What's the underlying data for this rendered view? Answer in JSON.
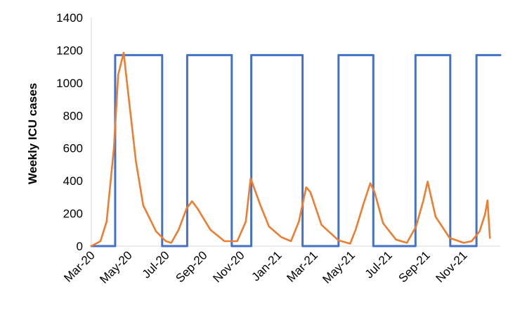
{
  "chart_data": {
    "type": "line",
    "title": "",
    "xlabel": "",
    "ylabel": "Weekly ICU cases",
    "ylim": [
      0,
      1400
    ],
    "yticks": [
      0,
      200,
      400,
      600,
      800,
      1000,
      1200,
      1400
    ],
    "xticks": [
      "Mar-20",
      "May-20",
      "Jul-20",
      "Sep-20",
      "Nov-20",
      "Jan-21",
      "Mar-21",
      "May-21",
      "Jul-21",
      "Sep-21",
      "Nov-21"
    ],
    "xlim": [
      "2020-03-01",
      "2021-12-31"
    ],
    "grid": false,
    "legend": "none",
    "series": [
      {
        "color": "#4472C4",
        "x": [
          "2020-03-01",
          "2020-04-09",
          "2020-04-09",
          "2020-06-25",
          "2020-06-25",
          "2020-08-05",
          "2020-08-05",
          "2020-10-17",
          "2020-10-17",
          "2020-11-18",
          "2020-11-18",
          "2021-02-10",
          "2021-02-10",
          "2021-04-10",
          "2021-04-10",
          "2021-06-06",
          "2021-06-06",
          "2021-08-14",
          "2021-08-14",
          "2021-10-10",
          "2021-10-10",
          "2021-11-22",
          "2021-11-22",
          "2021-12-31"
        ],
        "values": [
          0,
          0,
          1170,
          1170,
          0,
          0,
          1170,
          1170,
          0,
          0,
          1170,
          1170,
          0,
          0,
          1170,
          1170,
          0,
          0,
          1170,
          1170,
          0,
          0,
          1170,
          1170
        ]
      },
      {
        "color": "#ED7D31",
        "x": [
          "2020-03-01",
          "2020-03-16",
          "2020-03-26",
          "2020-04-07",
          "2020-04-14",
          "2020-04-23",
          "2020-04-30",
          "2020-05-13",
          "2020-05-25",
          "2020-06-15",
          "2020-07-01",
          "2020-07-10",
          "2020-07-22",
          "2020-08-04",
          "2020-08-13",
          "2020-08-22",
          "2020-09-12",
          "2020-10-05",
          "2020-10-26",
          "2020-11-09",
          "2020-11-17",
          "2020-12-03",
          "2020-12-17",
          "2021-01-06",
          "2021-01-22",
          "2021-02-04",
          "2021-02-16",
          "2021-02-23",
          "2021-03-13",
          "2021-04-10",
          "2021-04-29",
          "2021-05-08",
          "2021-05-21",
          "2021-06-01",
          "2021-06-08",
          "2021-06-22",
          "2021-07-13",
          "2021-07-31",
          "2021-08-15",
          "2021-08-27",
          "2021-09-03",
          "2021-09-16",
          "2021-10-09",
          "2021-11-01",
          "2021-11-14",
          "2021-11-27",
          "2021-12-06",
          "2021-12-10",
          "2021-12-14"
        ],
        "values": [
          0,
          30,
          150,
          600,
          1050,
          1185,
          950,
          520,
          250,
          90,
          30,
          20,
          100,
          230,
          275,
          230,
          100,
          30,
          30,
          150,
          415,
          250,
          120,
          55,
          30,
          150,
          360,
          330,
          130,
          35,
          15,
          100,
          260,
          385,
          330,
          140,
          40,
          20,
          120,
          280,
          395,
          180,
          50,
          20,
          30,
          90,
          195,
          280,
          50
        ]
      }
    ]
  }
}
